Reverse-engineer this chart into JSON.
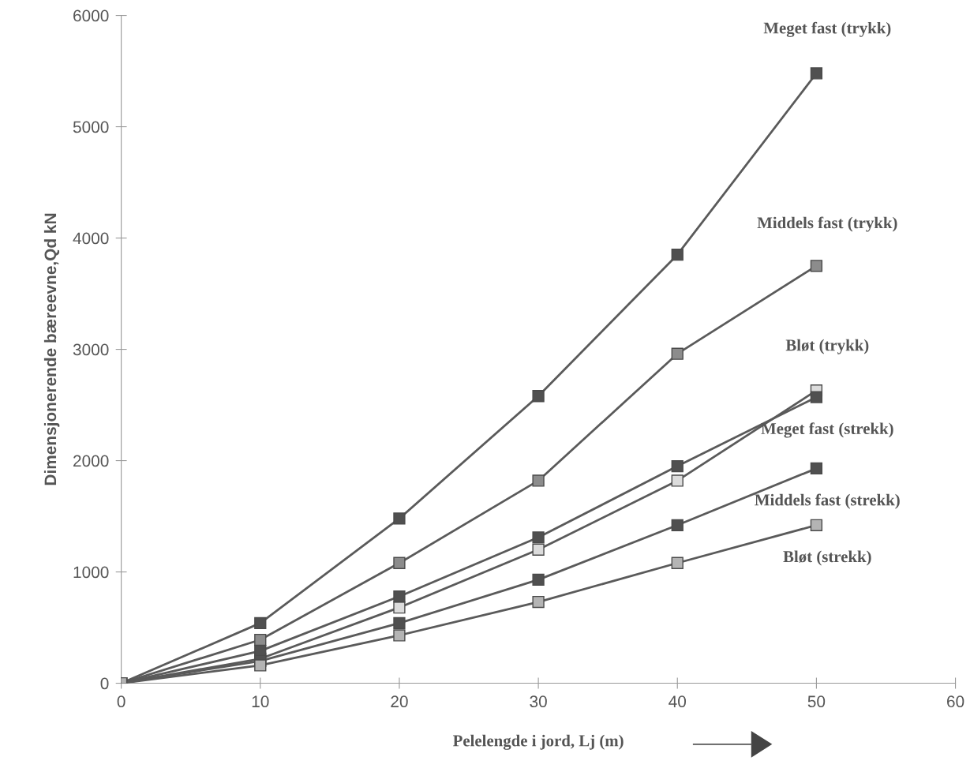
{
  "chart_data": {
    "type": "line",
    "xlabel": "Pelelengde i jord, Lj (m)",
    "ylabel": "Dimensjonerende bæreevne,Qd kN",
    "x": [
      0,
      10,
      20,
      30,
      40,
      50
    ],
    "series": [
      {
        "name": "Meget fast (trykk)",
        "color": "#505050",
        "values": [
          0,
          540,
          1480,
          2580,
          3850,
          5480
        ]
      },
      {
        "name": "Middels fast (trykk)",
        "color": "#8c8c8c",
        "values": [
          0,
          390,
          1080,
          1820,
          2960,
          3750
        ]
      },
      {
        "name": "Bløt (trykk)",
        "color": "#dcdcdc",
        "values": [
          0,
          220,
          680,
          1200,
          1820,
          2630
        ]
      },
      {
        "name": "Meget fast (strekk)",
        "color": "#505050",
        "values": [
          0,
          290,
          780,
          1310,
          1950,
          2570
        ]
      },
      {
        "name": "Middels fast (strekk)",
        "color": "#505050",
        "values": [
          0,
          200,
          540,
          930,
          1420,
          1930
        ]
      },
      {
        "name": "Bløt (strekk)",
        "color": "#b4b4b4",
        "values": [
          0,
          160,
          430,
          730,
          1080,
          1420
        ]
      }
    ],
    "xlim": [
      0,
      60
    ],
    "xticks": [
      0,
      10,
      20,
      30,
      40,
      50,
      60
    ],
    "ylim": [
      0,
      6000
    ],
    "yticks": [
      0,
      1000,
      2000,
      3000,
      4000,
      5000,
      6000
    ],
    "marker": "square",
    "line_style": "solid",
    "grid": false,
    "legend": false
  }
}
